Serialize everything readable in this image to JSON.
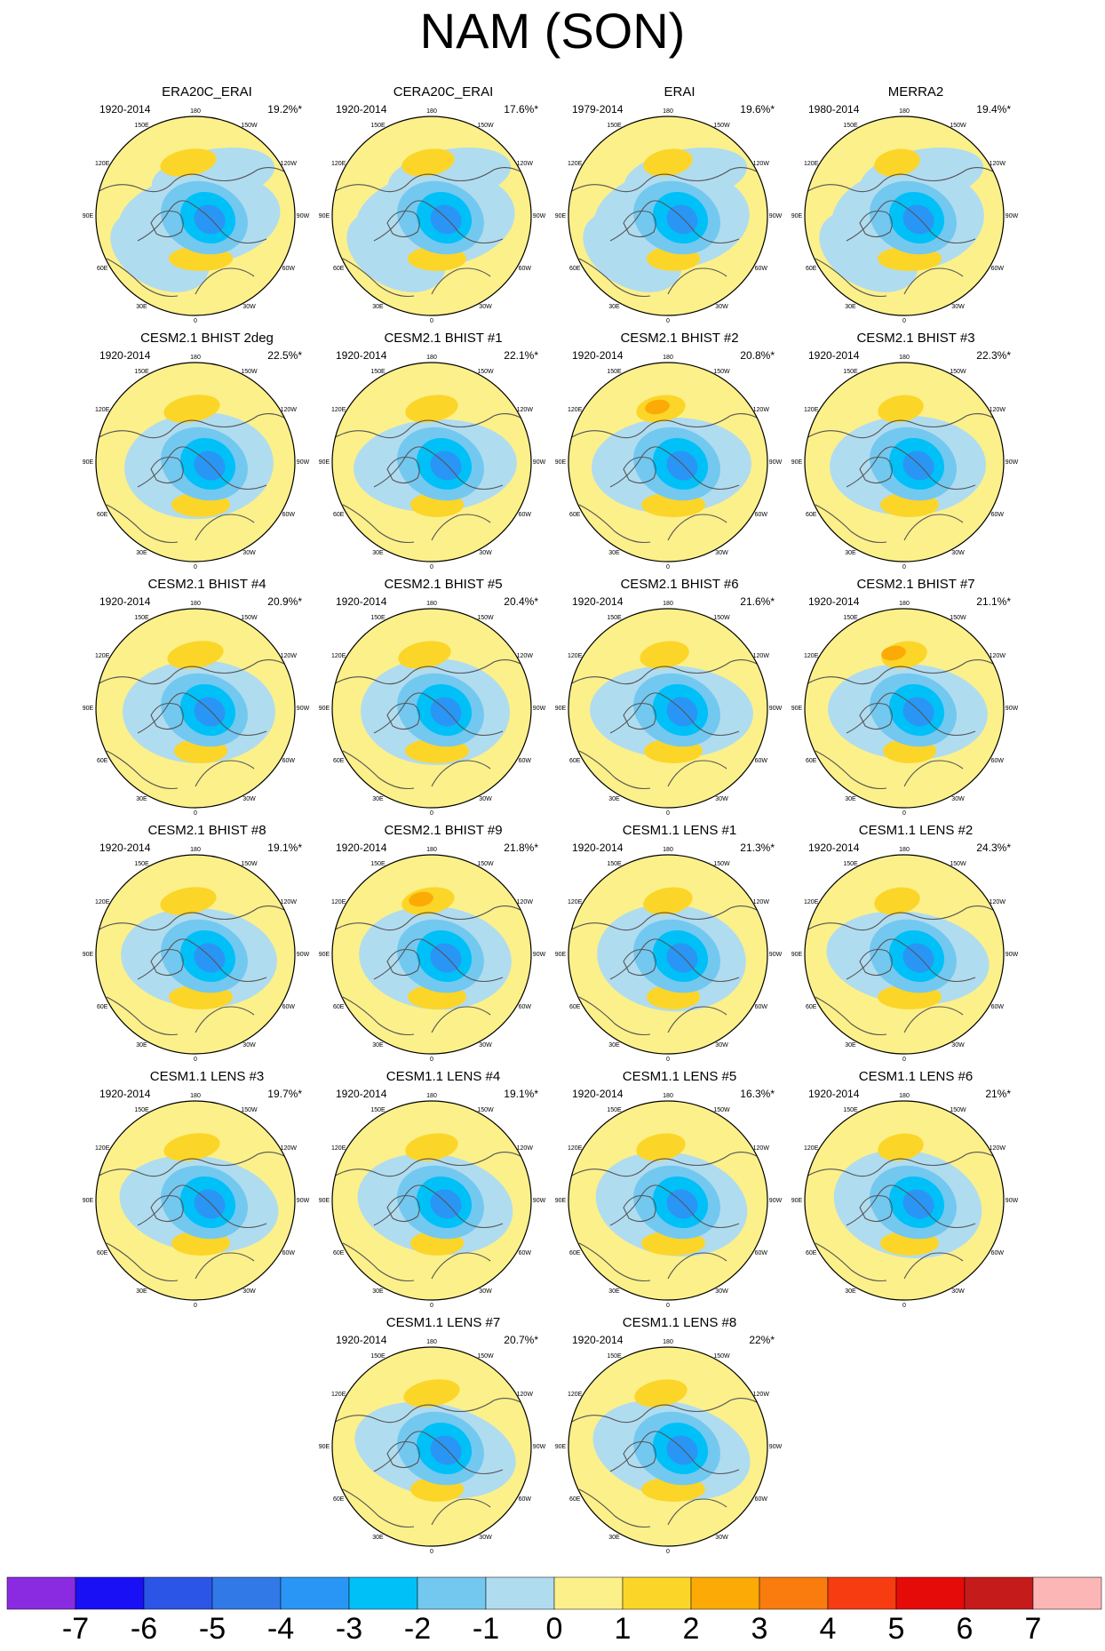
{
  "title": "NAM (SON)",
  "lon_labels": [
    "180",
    "150W",
    "120W",
    "90W",
    "60W",
    "30W",
    "0",
    "30E",
    "60E",
    "90E",
    "120E",
    "150E"
  ],
  "colors": {
    "c-7": "#8a2be2",
    "c-6": "#1a10f5",
    "c-5": "#2a55e6",
    "c-4": "#3279e8",
    "c-3": "#2996f5",
    "c-2": "#00c0f8",
    "c-1": "#73c8f0",
    "c0": "#b0dcf0",
    "c1": "#fcf08a",
    "c2": "#fcd529",
    "c3": "#fcaa05",
    "c4": "#fa7b0e",
    "c5": "#f73c11",
    "c6": "#e50b09",
    "c7": "#c51b1b",
    "c8": "#fcb6b6",
    "land": "#555555",
    "ocean_line": "#555555"
  },
  "colorbar": {
    "labels": [
      "-7",
      "-6",
      "-5",
      "-4",
      "-3",
      "-2",
      "-1",
      "0",
      "1",
      "2",
      "3",
      "4",
      "5",
      "6",
      "7"
    ],
    "boxes": [
      "#8a2be2",
      "#1a10f5",
      "#2a55e6",
      "#3279e8",
      "#2996f5",
      "#00c0f8",
      "#73c8f0",
      "#b0dcf0",
      "#fcf08a",
      "#fcd529",
      "#fcaa05",
      "#fa7b0e",
      "#f73c11",
      "#e50b09",
      "#c51b1b",
      "#fcb6b6"
    ]
  },
  "chart_data": {
    "type": "heatmap",
    "title": "NAM (SON)",
    "projection": "north polar stereographic",
    "units_levels": [
      -7,
      -6,
      -5,
      -4,
      -3,
      -2,
      -1,
      0,
      1,
      2,
      3,
      4,
      5,
      6,
      7
    ],
    "panels": [
      {
        "name": "ERA20C_ERAI",
        "period": "1920-2014",
        "variance": "19.2%*"
      },
      {
        "name": "CERA20C_ERAI",
        "period": "1920-2014",
        "variance": "17.6%*"
      },
      {
        "name": "ERAI",
        "period": "1979-2014",
        "variance": "19.6%*"
      },
      {
        "name": "MERRA2",
        "period": "1980-2014",
        "variance": "19.4%*"
      },
      {
        "name": "CESM2.1 BHIST 2deg",
        "period": "1920-2014",
        "variance": "22.5%*"
      },
      {
        "name": "CESM2.1 BHIST #1",
        "period": "1920-2014",
        "variance": "22.1%*"
      },
      {
        "name": "CESM2.1 BHIST #2",
        "period": "1920-2014",
        "variance": "20.8%*"
      },
      {
        "name": "CESM2.1 BHIST #3",
        "period": "1920-2014",
        "variance": "22.3%*"
      },
      {
        "name": "CESM2.1 BHIST #4",
        "period": "1920-2014",
        "variance": "20.9%*"
      },
      {
        "name": "CESM2.1 BHIST #5",
        "period": "1920-2014",
        "variance": "20.4%*"
      },
      {
        "name": "CESM2.1 BHIST #6",
        "period": "1920-2014",
        "variance": "21.6%*"
      },
      {
        "name": "CESM2.1 BHIST #7",
        "period": "1920-2014",
        "variance": "21.1%*"
      },
      {
        "name": "CESM2.1 BHIST #8",
        "period": "1920-2014",
        "variance": "19.1%*"
      },
      {
        "name": "CESM2.1 BHIST #9",
        "period": "1920-2014",
        "variance": "21.8%*"
      },
      {
        "name": "CESM1.1 LENS #1",
        "period": "1920-2014",
        "variance": "21.3%*"
      },
      {
        "name": "CESM1.1 LENS #2",
        "period": "1920-2014",
        "variance": "24.3%*"
      },
      {
        "name": "CESM1.1 LENS #3",
        "period": "1920-2014",
        "variance": "19.7%*"
      },
      {
        "name": "CESM1.1 LENS #4",
        "period": "1920-2014",
        "variance": "19.1%*"
      },
      {
        "name": "CESM1.1 LENS #5",
        "period": "1920-2014",
        "variance": "16.3%*"
      },
      {
        "name": "CESM1.1 LENS #6",
        "period": "1920-2014",
        "variance": "21%*"
      },
      {
        "name": "CESM1.1 LENS #7",
        "period": "1920-2014",
        "variance": "20.7%*"
      },
      {
        "name": "CESM1.1 LENS #8",
        "period": "1920-2014",
        "variance": "22%*"
      }
    ]
  }
}
